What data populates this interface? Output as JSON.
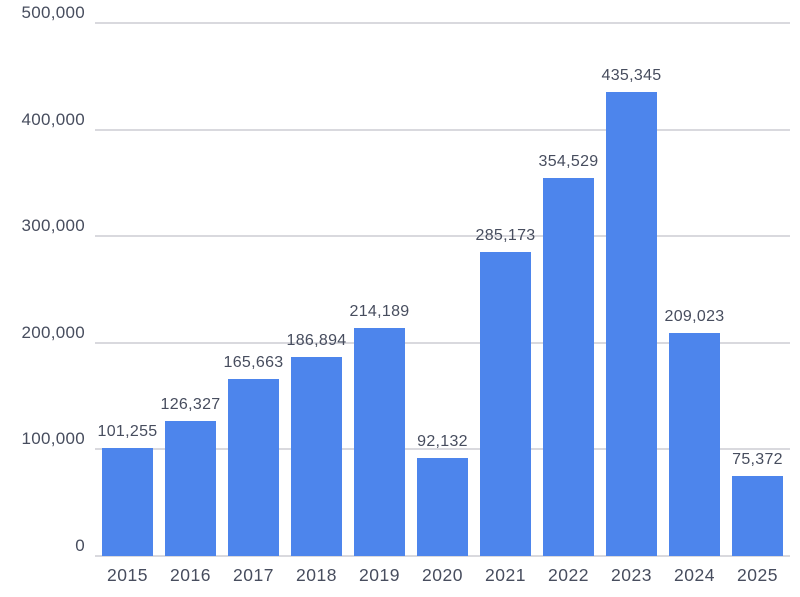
{
  "chart_data": {
    "type": "bar",
    "categories": [
      "2015",
      "2016",
      "2017",
      "2018",
      "2019",
      "2020",
      "2021",
      "2022",
      "2023",
      "2024",
      "2025"
    ],
    "values": [
      101255,
      126327,
      165663,
      186894,
      214189,
      92132,
      285173,
      354529,
      435345,
      209023,
      75372
    ],
    "value_labels": [
      "101,255",
      "126,327",
      "165,663",
      "186,894",
      "214,189",
      "92,132",
      "285,173",
      "354,529",
      "435,345",
      "209,023",
      "75,372"
    ],
    "title": "",
    "xlabel": "",
    "ylabel": "",
    "ylim": [
      0,
      500000
    ],
    "yticks": [
      0,
      100000,
      200000,
      300000,
      400000,
      500000
    ],
    "ytick_labels": [
      "0",
      "100,000",
      "200,000",
      "300,000",
      "400,000",
      "500,000"
    ],
    "grid": true,
    "legend": false
  },
  "style": {
    "bar_color": "#4d85ec",
    "grid_color": "#d9d9de",
    "text_color": "#474d5e"
  }
}
